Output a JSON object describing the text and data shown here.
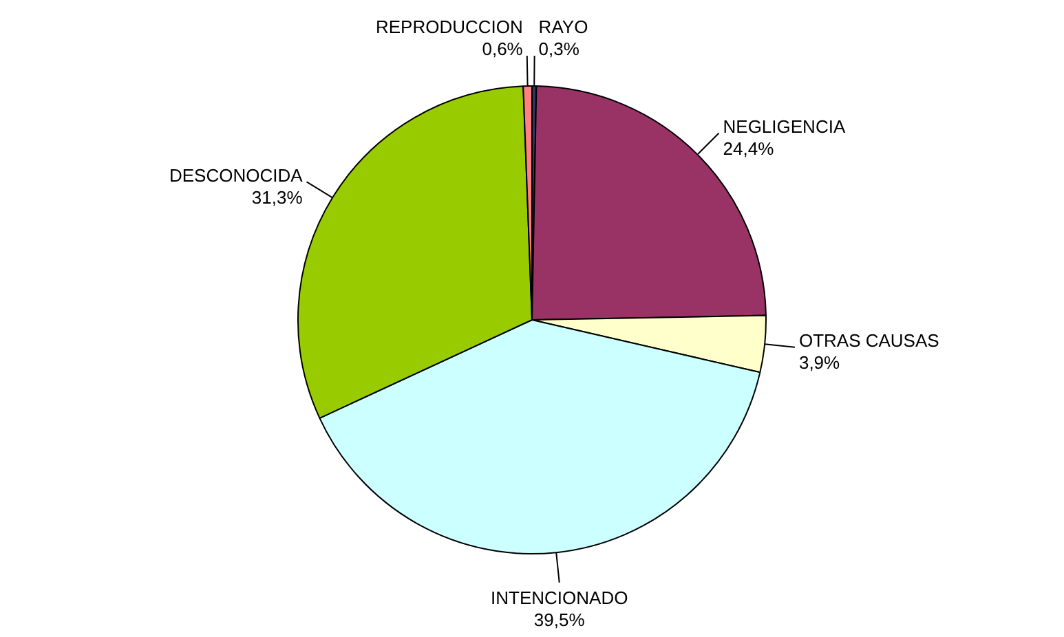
{
  "chart_data": {
    "type": "pie",
    "categories": [
      "RAYO",
      "NEGLIGENCIA",
      "OTRAS CAUSAS",
      "INTENCIONADO",
      "DESCONOCIDA",
      "REPRODUCCION"
    ],
    "values": [
      0.3,
      24.4,
      3.9,
      39.5,
      31.3,
      0.6
    ],
    "colors": [
      "#333366",
      "#993366",
      "#ffffcc",
      "#ccffff",
      "#99cc00",
      "#ff8080"
    ],
    "value_labels": [
      "0,3%",
      "24,4%",
      "3,9%",
      "39,5%",
      "31,3%",
      "0,6%"
    ],
    "legend": false
  }
}
